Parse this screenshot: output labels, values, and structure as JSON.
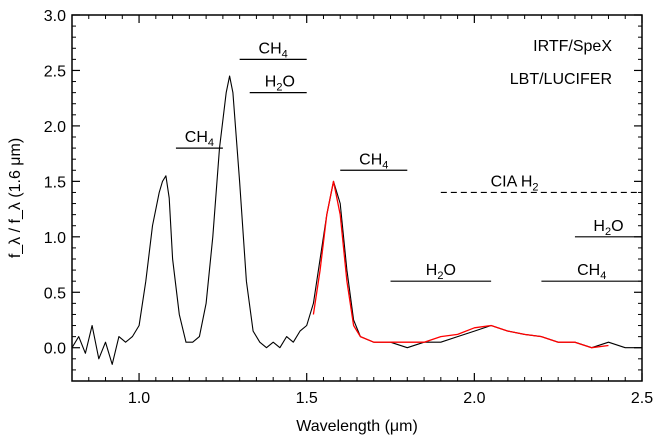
{
  "chart_data": {
    "type": "line",
    "xlabel": "Wavelength (μm)",
    "ylabel": "f_λ / f_λ (1.6 μm)",
    "xlim": [
      0.8,
      2.5
    ],
    "ylim": [
      -0.3,
      3.0
    ],
    "xticks": [
      1.0,
      1.5,
      2.0,
      2.5
    ],
    "xtick_labels": [
      "1.0",
      "1.5",
      "2.0",
      "2.5"
    ],
    "yticks": [
      0.0,
      0.5,
      1.0,
      1.5,
      2.0,
      2.5,
      3.0
    ],
    "ytick_labels": [
      "0.0",
      "0.5",
      "1.0",
      "1.5",
      "2.0",
      "2.5",
      "3.0"
    ],
    "legend": {
      "placement": "top-right",
      "entries": [
        {
          "label": "IRTF/SpeX",
          "color": "#000000"
        },
        {
          "label": "LBT/LUCIFER",
          "color": "#ff0000"
        }
      ]
    },
    "series": [
      {
        "name": "IRTF/SpeX",
        "color": "#000000",
        "points": [
          [
            0.8,
            0.0
          ],
          [
            0.82,
            0.1
          ],
          [
            0.84,
            -0.05
          ],
          [
            0.86,
            0.2
          ],
          [
            0.88,
            -0.1
          ],
          [
            0.9,
            0.05
          ],
          [
            0.92,
            -0.15
          ],
          [
            0.94,
            0.1
          ],
          [
            0.96,
            0.05
          ],
          [
            0.98,
            0.1
          ],
          [
            1.0,
            0.2
          ],
          [
            1.02,
            0.6
          ],
          [
            1.04,
            1.1
          ],
          [
            1.06,
            1.4
          ],
          [
            1.07,
            1.5
          ],
          [
            1.08,
            1.55
          ],
          [
            1.09,
            1.35
          ],
          [
            1.1,
            0.8
          ],
          [
            1.12,
            0.3
          ],
          [
            1.14,
            0.05
          ],
          [
            1.16,
            0.05
          ],
          [
            1.18,
            0.1
          ],
          [
            1.2,
            0.4
          ],
          [
            1.22,
            1.0
          ],
          [
            1.24,
            1.8
          ],
          [
            1.26,
            2.3
          ],
          [
            1.27,
            2.45
          ],
          [
            1.28,
            2.3
          ],
          [
            1.3,
            1.5
          ],
          [
            1.32,
            0.6
          ],
          [
            1.34,
            0.15
          ],
          [
            1.36,
            0.05
          ],
          [
            1.38,
            0.0
          ],
          [
            1.4,
            0.05
          ],
          [
            1.42,
            0.0
          ],
          [
            1.44,
            0.1
          ],
          [
            1.46,
            0.05
          ],
          [
            1.48,
            0.15
          ],
          [
            1.5,
            0.2
          ],
          [
            1.52,
            0.4
          ],
          [
            1.54,
            0.8
          ],
          [
            1.56,
            1.2
          ],
          [
            1.58,
            1.5
          ],
          [
            1.6,
            1.3
          ],
          [
            1.62,
            0.7
          ],
          [
            1.64,
            0.25
          ],
          [
            1.66,
            0.1
          ],
          [
            1.7,
            0.05
          ],
          [
            1.75,
            0.05
          ],
          [
            1.8,
            0.0
          ],
          [
            1.85,
            0.05
          ],
          [
            1.9,
            0.05
          ],
          [
            1.95,
            0.1
          ],
          [
            2.0,
            0.15
          ],
          [
            2.05,
            0.2
          ],
          [
            2.1,
            0.15
          ],
          [
            2.15,
            0.12
          ],
          [
            2.2,
            0.1
          ],
          [
            2.25,
            0.05
          ],
          [
            2.3,
            0.05
          ],
          [
            2.35,
            0.0
          ],
          [
            2.4,
            0.05
          ],
          [
            2.45,
            0.0
          ],
          [
            2.5,
            0.0
          ]
        ]
      },
      {
        "name": "LBT/LUCIFER",
        "color": "#ff0000",
        "points": [
          [
            1.52,
            0.3
          ],
          [
            1.54,
            0.7
          ],
          [
            1.56,
            1.2
          ],
          [
            1.58,
            1.5
          ],
          [
            1.6,
            1.2
          ],
          [
            1.62,
            0.6
          ],
          [
            1.64,
            0.2
          ],
          [
            1.66,
            0.1
          ],
          [
            1.7,
            0.05
          ],
          [
            1.75,
            0.05
          ],
          [
            1.8,
            0.05
          ],
          [
            1.85,
            0.05
          ],
          [
            1.9,
            0.1
          ],
          [
            1.95,
            0.12
          ],
          [
            2.0,
            0.18
          ],
          [
            2.05,
            0.2
          ],
          [
            2.1,
            0.15
          ],
          [
            2.15,
            0.12
          ],
          [
            2.2,
            0.1
          ],
          [
            2.25,
            0.05
          ],
          [
            2.3,
            0.05
          ],
          [
            2.35,
            0.0
          ],
          [
            2.4,
            0.02
          ]
        ]
      }
    ],
    "annotations": [
      {
        "label": "CH4",
        "x0": 1.11,
        "x1": 1.25,
        "y": 1.8,
        "text_x": 1.18,
        "dashed": false
      },
      {
        "label": "CH4",
        "x0": 1.3,
        "x1": 1.5,
        "y": 2.6,
        "text_x": 1.4,
        "dashed": false
      },
      {
        "label": "H2O",
        "x0": 1.33,
        "x1": 1.5,
        "y": 2.3,
        "text_x": 1.42,
        "dashed": false
      },
      {
        "label": "CH4",
        "x0": 1.6,
        "x1": 1.8,
        "y": 1.6,
        "text_x": 1.7,
        "dashed": false
      },
      {
        "label": "CIA H2",
        "x0": 1.9,
        "x1": 2.5,
        "y": 1.4,
        "text_x": 2.12,
        "dashed": true
      },
      {
        "label": "H2O",
        "x0": 2.3,
        "x1": 2.5,
        "y": 1.0,
        "text_x": 2.4,
        "dashed": false
      },
      {
        "label": "H2O",
        "x0": 1.75,
        "x1": 2.05,
        "y": 0.6,
        "text_x": 1.9,
        "dashed": false
      },
      {
        "label": "CH4",
        "x0": 2.2,
        "x1": 2.5,
        "y": 0.6,
        "text_x": 2.35,
        "dashed": false
      }
    ]
  }
}
